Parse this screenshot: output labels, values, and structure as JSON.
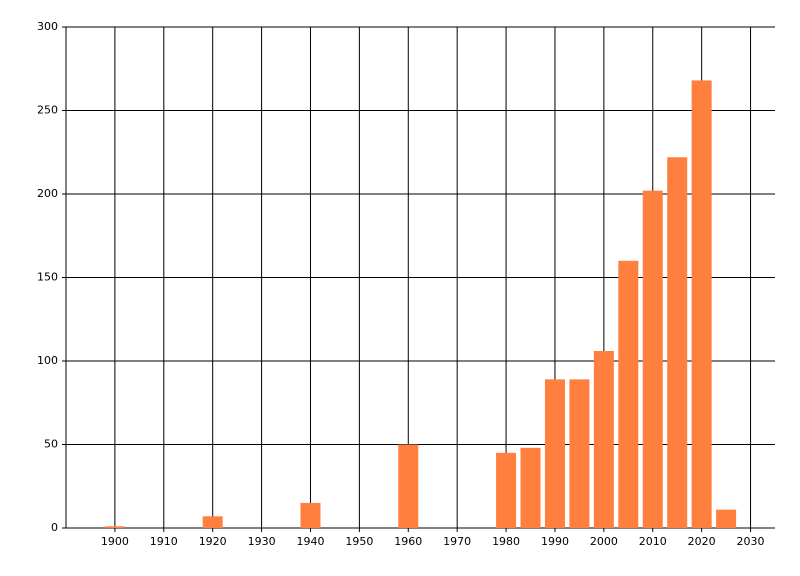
{
  "chart_data": {
    "type": "bar",
    "x": [
      1900,
      1920,
      1940,
      1960,
      1980,
      1985,
      1990,
      1995,
      2000,
      2005,
      2010,
      2015,
      2020,
      2025
    ],
    "values": [
      1,
      7,
      15,
      50,
      45,
      48,
      89,
      89,
      106,
      160,
      202,
      222,
      268,
      11
    ],
    "color": "#ff7f3f",
    "xlim": [
      1890,
      2035
    ],
    "xticks": [
      1900,
      1910,
      1920,
      1930,
      1940,
      1950,
      1960,
      1970,
      1980,
      1990,
      2000,
      2010,
      2020,
      2030
    ],
    "ylim": [
      0,
      300
    ],
    "yticks": [
      0,
      50,
      100,
      150,
      200,
      250,
      300
    ],
    "grid": true
  }
}
